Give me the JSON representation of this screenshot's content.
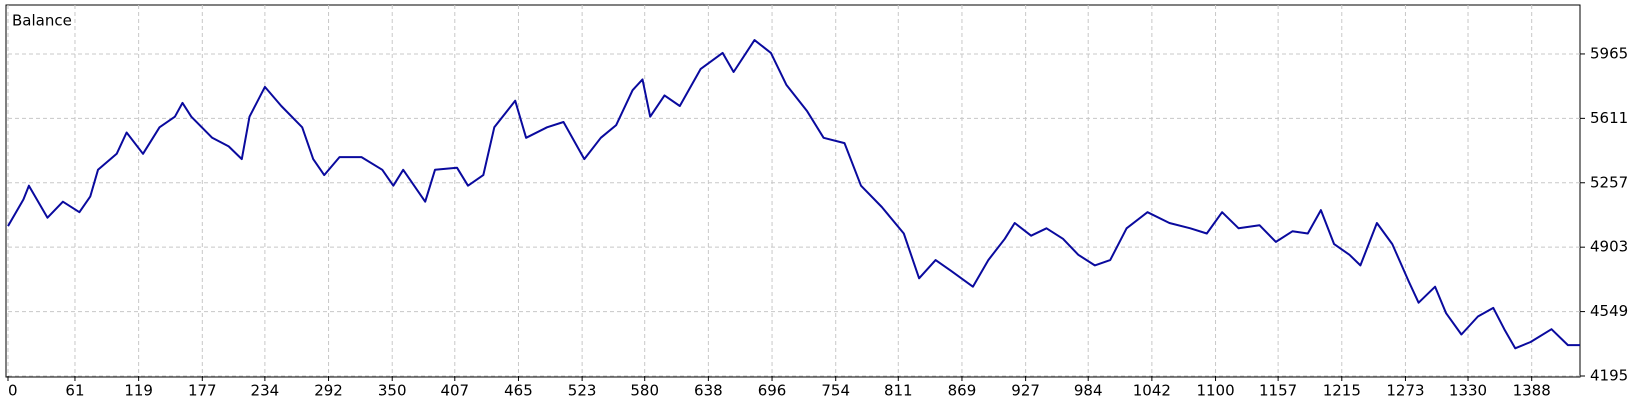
{
  "chart_data": {
    "type": "line",
    "title": "Balance",
    "xlim": [
      0,
      1432
    ],
    "ylim": [
      4195,
      6234
    ],
    "xticks": [
      0,
      61,
      119,
      177,
      234,
      292,
      350,
      407,
      465,
      523,
      580,
      638,
      696,
      754,
      811,
      869,
      927,
      984,
      1042,
      1100,
      1157,
      1215,
      1273,
      1330,
      1388
    ],
    "yticks": [
      4195,
      4549,
      4903,
      5257,
      5611,
      5965
    ],
    "grid": true,
    "series": [
      {
        "color": "#0a0a9e",
        "x": [
          0,
          14,
          19,
          36,
          50,
          65,
          75,
          82,
          99,
          108,
          123,
          138,
          152,
          159,
          167,
          186,
          201,
          213,
          220,
          234,
          249,
          268,
          278,
          288,
          302,
          322,
          341,
          351,
          360,
          380,
          389,
          409,
          419,
          433,
          443,
          462,
          472,
          491,
          506,
          525,
          540,
          554,
          569,
          578,
          585,
          598,
          612,
          631,
          651,
          661,
          680,
          695,
          709,
          728,
          743,
          762,
          777,
          796,
          816,
          830,
          845,
          859,
          879,
          893,
          908,
          917,
          932,
          946,
          961,
          975,
          990,
          1004,
          1019,
          1038,
          1058,
          1077,
          1092,
          1106,
          1121,
          1140,
          1155,
          1170,
          1184,
          1196,
          1208,
          1222,
          1232,
          1247,
          1261,
          1276,
          1285,
          1300,
          1310,
          1324,
          1339,
          1353,
          1363,
          1373,
          1387,
          1406,
          1421,
          1432
        ],
        "values": [
          5019,
          5165,
          5241,
          5065,
          5153,
          5095,
          5182,
          5328,
          5416,
          5533,
          5416,
          5562,
          5620,
          5696,
          5620,
          5504,
          5457,
          5387,
          5620,
          5784,
          5679,
          5562,
          5387,
          5299,
          5398,
          5398,
          5328,
          5241,
          5328,
          5153,
          5328,
          5340,
          5241,
          5299,
          5562,
          5708,
          5504,
          5562,
          5591,
          5387,
          5504,
          5574,
          5766,
          5825,
          5620,
          5737,
          5679,
          5883,
          5971,
          5866,
          6041,
          5971,
          5796,
          5650,
          5504,
          5475,
          5241,
          5124,
          4978,
          4732,
          4832,
          4773,
          4686,
          4832,
          4949,
          5036,
          4966,
          5007,
          4949,
          4861,
          4803,
          4832,
          5007,
          5095,
          5036,
          5007,
          4978,
          5095,
          5007,
          5024,
          4932,
          4990,
          4978,
          5107,
          4920,
          4861,
          4803,
          5036,
          4920,
          4715,
          4598,
          4686,
          4540,
          4423,
          4522,
          4569,
          4452,
          4347,
          4382,
          4452,
          4365,
          4365
        ]
      }
    ]
  }
}
